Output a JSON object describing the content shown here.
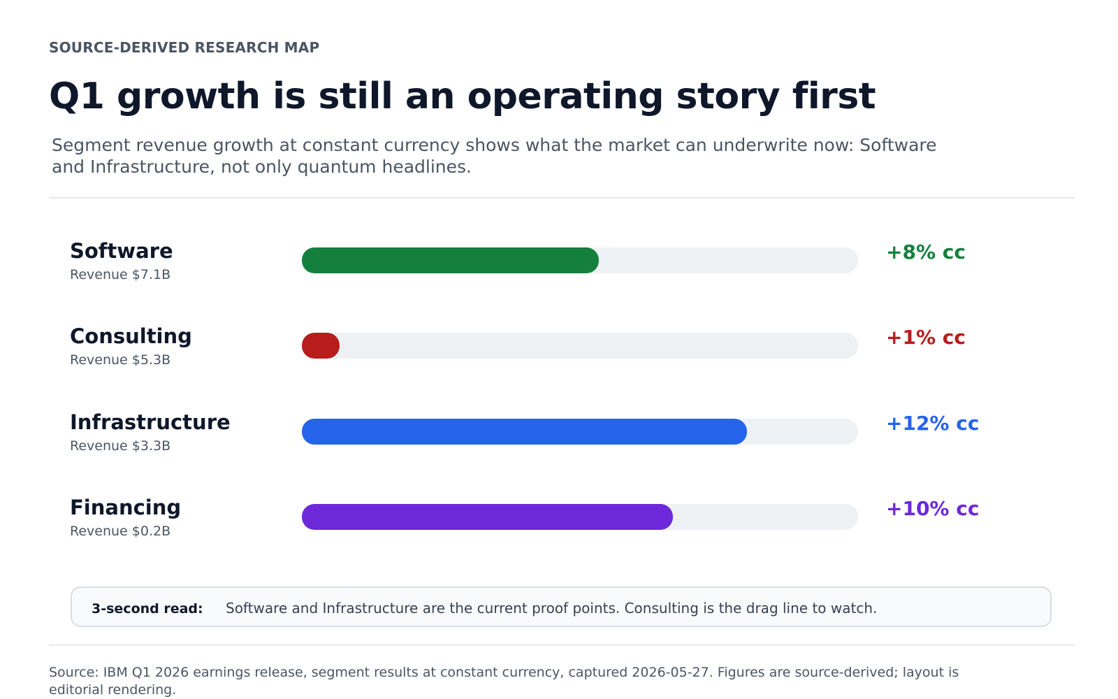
{
  "header": {
    "eyebrow": "SOURCE-DERIVED RESEARCH MAP",
    "title": "Q1 growth is still an operating story first",
    "subtitle": "Segment revenue growth at constant currency shows what the market can underwrite now: Software and Infrastructure, not only quantum headlines."
  },
  "chart_data": {
    "type": "bar",
    "orientation": "horizontal",
    "xlim": [
      0,
      15
    ],
    "grid": false,
    "legend": "none",
    "series": [
      {
        "values": [
          8,
          1,
          12,
          10
        ]
      }
    ],
    "categories": [
      "Software",
      "Consulting",
      "Infrastructure",
      "Financing"
    ],
    "segments": [
      {
        "name": "Software",
        "revenue_label": "Revenue $7.1B",
        "growth": 8,
        "growth_label": "+8% cc",
        "color": "#15803d"
      },
      {
        "name": "Consulting",
        "revenue_label": "Revenue $5.3B",
        "growth": 1,
        "growth_label": "+1% cc",
        "color": "#b91c1c"
      },
      {
        "name": "Infrastructure",
        "revenue_label": "Revenue $3.3B",
        "growth": 12,
        "growth_label": "+12% cc",
        "color": "#2563eb"
      },
      {
        "name": "Financing",
        "revenue_label": "Revenue $0.2B",
        "growth": 10,
        "growth_label": "+10% cc",
        "color": "#6d28d9"
      }
    ]
  },
  "takeaway": {
    "label": "3-second read:",
    "text": "Software and Infrastructure are the current proof points. Consulting is the drag line to watch."
  },
  "footer": {
    "source": "Source: IBM Q1 2026 earnings release, segment results at constant currency, captured 2026-05-27. Figures are source-derived; layout is editorial rendering."
  }
}
